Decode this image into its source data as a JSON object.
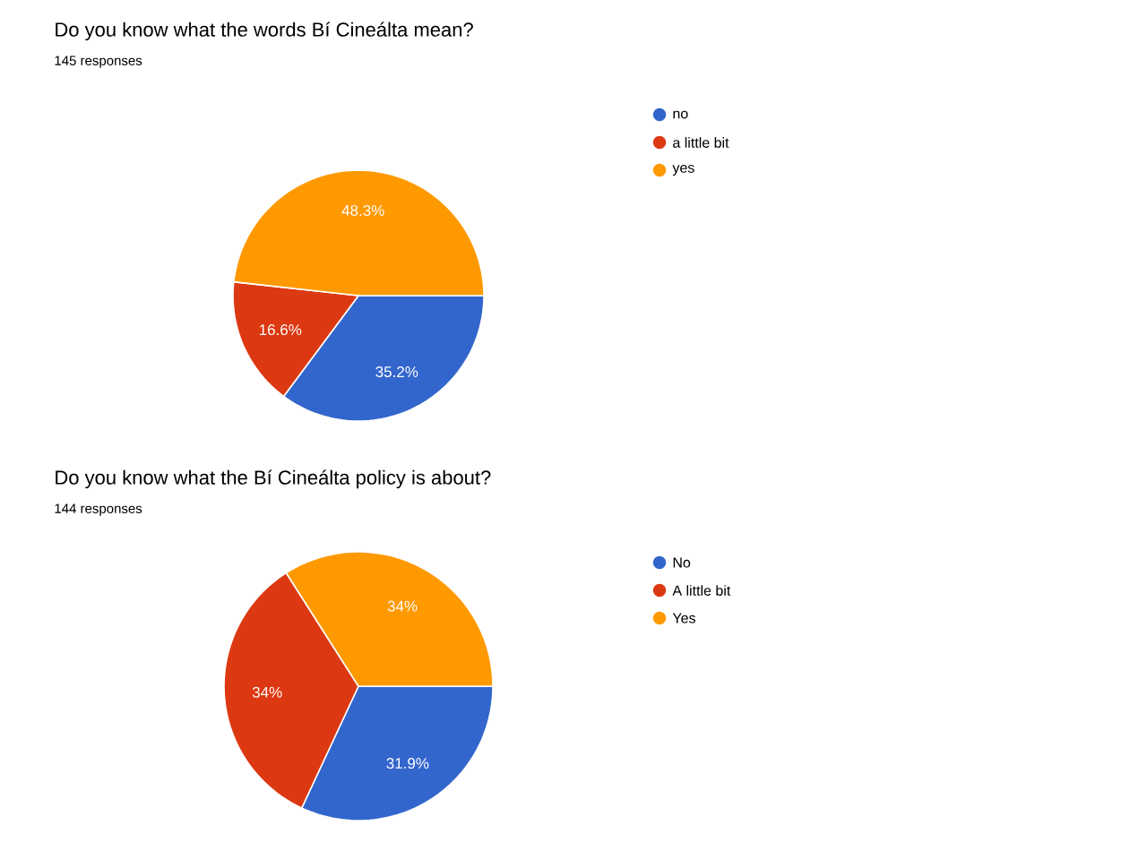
{
  "chart_data": [
    {
      "type": "pie",
      "title": "Do you know what the words Bí Cineálta mean?",
      "subtitle": "145 responses",
      "categories": [
        "no",
        "a little bit",
        "yes"
      ],
      "values": [
        35.2,
        16.6,
        48.3
      ],
      "colors": [
        "#3366cc",
        "#dc3912",
        "#ff9900"
      ],
      "value_labels": [
        "35.2%",
        "16.6%",
        "48.3%"
      ],
      "legend": "right"
    },
    {
      "type": "pie",
      "title": "Do you know what the Bí Cineálta policy is about?",
      "subtitle": "144 responses",
      "categories": [
        "No",
        "A little bit",
        "Yes"
      ],
      "values": [
        31.9,
        34,
        34
      ],
      "colors": [
        "#3366cc",
        "#dc3912",
        "#ff9900"
      ],
      "value_labels": [
        "31.9%",
        "34%",
        "34%"
      ],
      "legend": "right"
    }
  ]
}
